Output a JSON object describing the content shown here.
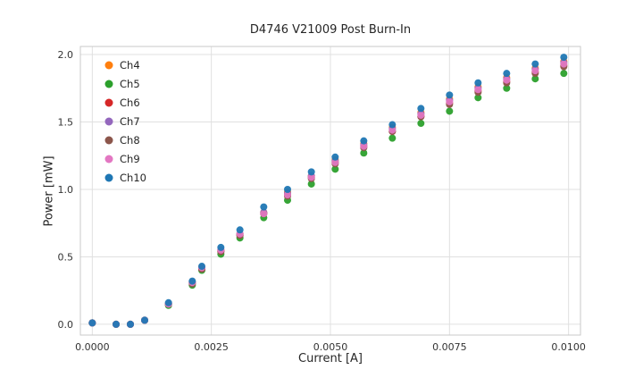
{
  "chart_data": {
    "type": "scatter",
    "title": "D4746 V21009 Post Burn-In",
    "xlabel": "Current [A]",
    "ylabel": "Power [mW]",
    "xlim": [
      -0.00025,
      0.01025
    ],
    "ylim": [
      -0.08,
      2.06
    ],
    "grid": true,
    "legend_position": "upper-left",
    "x_ticks": {
      "values": [
        0.0,
        0.0025,
        0.005,
        0.0075,
        0.01
      ],
      "labels": [
        "0.0000",
        "0.0025",
        "0.0050",
        "0.0075",
        "0.0100"
      ]
    },
    "y_ticks": {
      "values": [
        0.0,
        0.5,
        1.0,
        1.5,
        2.0
      ],
      "labels": [
        "0.0",
        "0.5",
        "1.0",
        "1.5",
        "2.0"
      ]
    },
    "x": [
      0.0,
      0.0005,
      0.0008,
      0.0011,
      0.0016,
      0.0021,
      0.0023,
      0.0027,
      0.0031,
      0.0036,
      0.0041,
      0.0046,
      0.0051,
      0.0057,
      0.0063,
      0.0069,
      0.0075,
      0.0081,
      0.0087,
      0.0093,
      0.0099
    ],
    "series": [
      {
        "name": "Ch4",
        "color": "#ff7f0e",
        "values": [
          0.01,
          0.0,
          0.0,
          0.03,
          0.15,
          0.31,
          0.42,
          0.55,
          0.67,
          0.83,
          0.98,
          1.1,
          1.22,
          1.34,
          1.46,
          1.57,
          1.67,
          1.76,
          1.83,
          1.9,
          1.95
        ]
      },
      {
        "name": "Ch5",
        "color": "#2ca02c",
        "values": [
          0.01,
          0.0,
          0.0,
          0.03,
          0.14,
          0.29,
          0.4,
          0.52,
          0.64,
          0.79,
          0.92,
          1.04,
          1.15,
          1.27,
          1.38,
          1.49,
          1.58,
          1.68,
          1.75,
          1.82,
          1.86
        ]
      },
      {
        "name": "Ch6",
        "color": "#d62728",
        "values": [
          0.01,
          0.0,
          0.0,
          0.03,
          0.15,
          0.31,
          0.41,
          0.54,
          0.66,
          0.82,
          0.96,
          1.09,
          1.2,
          1.32,
          1.43,
          1.54,
          1.64,
          1.73,
          1.8,
          1.87,
          1.92
        ]
      },
      {
        "name": "Ch7",
        "color": "#9467bd",
        "values": [
          0.01,
          0.0,
          0.0,
          0.03,
          0.15,
          0.31,
          0.42,
          0.55,
          0.67,
          0.83,
          0.97,
          1.1,
          1.21,
          1.33,
          1.45,
          1.56,
          1.66,
          1.75,
          1.82,
          1.89,
          1.94
        ]
      },
      {
        "name": "Ch8",
        "color": "#8c564b",
        "values": [
          0.01,
          0.0,
          0.0,
          0.03,
          0.15,
          0.3,
          0.41,
          0.54,
          0.66,
          0.82,
          0.95,
          1.08,
          1.19,
          1.31,
          1.43,
          1.54,
          1.63,
          1.72,
          1.79,
          1.86,
          1.91
        ]
      },
      {
        "name": "Ch9",
        "color": "#e377c2",
        "values": [
          0.01,
          0.0,
          0.0,
          0.03,
          0.15,
          0.31,
          0.42,
          0.55,
          0.67,
          0.82,
          0.96,
          1.09,
          1.2,
          1.32,
          1.44,
          1.55,
          1.65,
          1.74,
          1.81,
          1.88,
          1.93
        ]
      },
      {
        "name": "Ch10",
        "color": "#1f77b4",
        "values": [
          0.01,
          0.0,
          0.0,
          0.03,
          0.16,
          0.32,
          0.43,
          0.57,
          0.7,
          0.87,
          1.0,
          1.13,
          1.24,
          1.36,
          1.48,
          1.6,
          1.7,
          1.79,
          1.86,
          1.93,
          1.98
        ]
      }
    ],
    "style": {
      "grid_color": "#e0e0e0",
      "spine_color": "#c9c9c9",
      "tick_label_color": "#333333",
      "text_color": "#262626",
      "marker_radius": 4
    }
  }
}
